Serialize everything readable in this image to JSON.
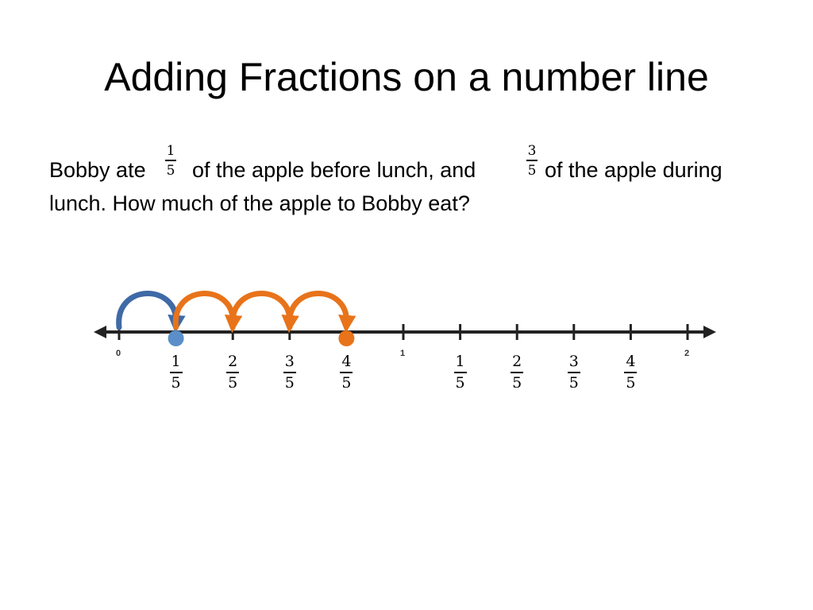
{
  "title": "Adding Fractions on a number line",
  "problem": {
    "part1": "Bobby ate",
    "frac1": {
      "num": "1",
      "den": "5"
    },
    "part2": "of the apple before lunch, and",
    "frac2": {
      "num": "3",
      "den": "5"
    },
    "part3": "of the apple during",
    "line2": "lunch.  How much of the apple to Bobby eat?"
  },
  "number_line": {
    "whole_labels": [
      "0",
      "1",
      "2"
    ],
    "fraction_labels": [
      {
        "num": "1",
        "den": "5"
      },
      {
        "num": "2",
        "den": "5"
      },
      {
        "num": "3",
        "den": "5"
      },
      {
        "num": "4",
        "den": "5"
      },
      {
        "num": "1",
        "den": "5"
      },
      {
        "num": "2",
        "den": "5"
      },
      {
        "num": "3",
        "den": "5"
      },
      {
        "num": "4",
        "den": "5"
      }
    ],
    "points": [
      {
        "value": 0.2,
        "color": "#5b8fc9"
      },
      {
        "value": 0.8,
        "color": "#e8731a"
      }
    ],
    "jumps": [
      {
        "from": 0,
        "to": 0.2,
        "color": "#3f6aa6"
      },
      {
        "from": 0.2,
        "to": 0.4,
        "color": "#e8731a"
      },
      {
        "from": 0.4,
        "to": 0.6,
        "color": "#e8731a"
      },
      {
        "from": 0.6,
        "to": 0.8,
        "color": "#e8731a"
      }
    ]
  },
  "colors": {
    "blue": "#3f6aa6",
    "orange": "#e8731a",
    "line": "#222222"
  }
}
